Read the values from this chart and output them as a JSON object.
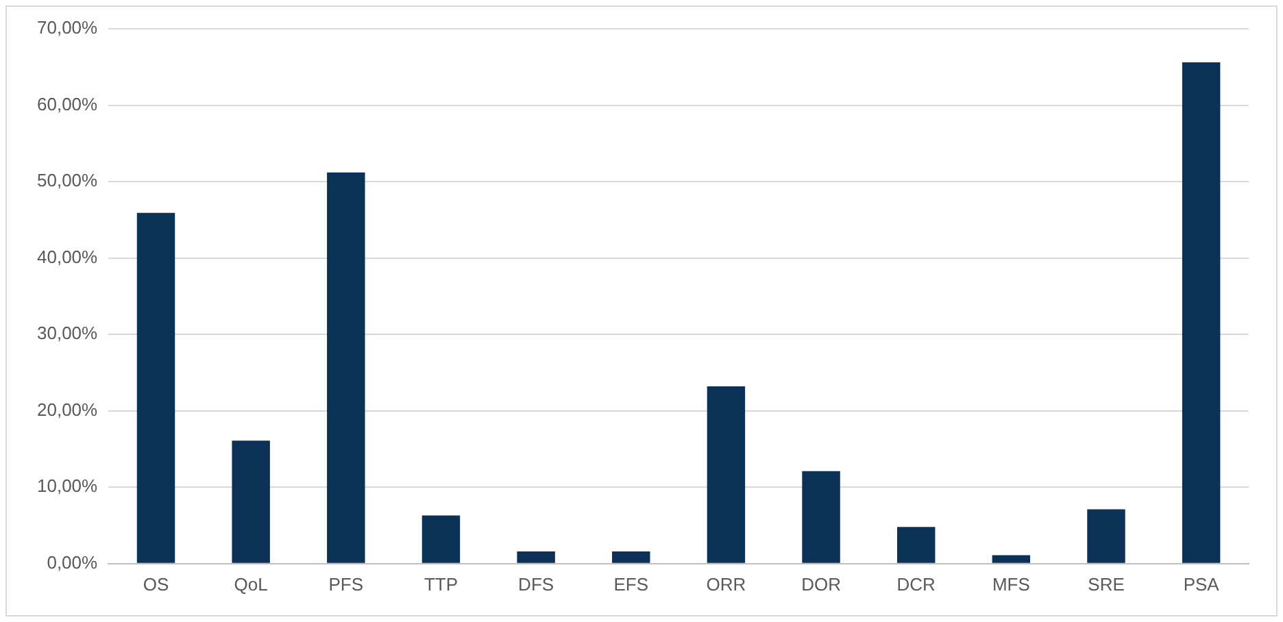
{
  "chart_data": {
    "type": "bar",
    "categories": [
      "OS",
      "QoL",
      "PFS",
      "TTP",
      "DFS",
      "EFS",
      "ORR",
      "DOR",
      "DCR",
      "MFS",
      "SRE",
      "PSA"
    ],
    "values": [
      45.9,
      16.1,
      51.2,
      6.3,
      1.6,
      1.6,
      23.2,
      12.1,
      4.8,
      1.1,
      7.1,
      65.6
    ],
    "color": "#0b3156",
    "ylim": [
      0,
      70
    ],
    "yticks": [
      {
        "value": 0,
        "label": "0,00%"
      },
      {
        "value": 10,
        "label": "10,00%"
      },
      {
        "value": 20,
        "label": "20,00%"
      },
      {
        "value": 30,
        "label": "30,00%"
      },
      {
        "value": 40,
        "label": "40,00%"
      },
      {
        "value": 50,
        "label": "50,00%"
      },
      {
        "value": 60,
        "label": "60,00%"
      },
      {
        "value": 70,
        "label": "70,00%"
      }
    ],
    "grid": "y",
    "legend": false
  }
}
